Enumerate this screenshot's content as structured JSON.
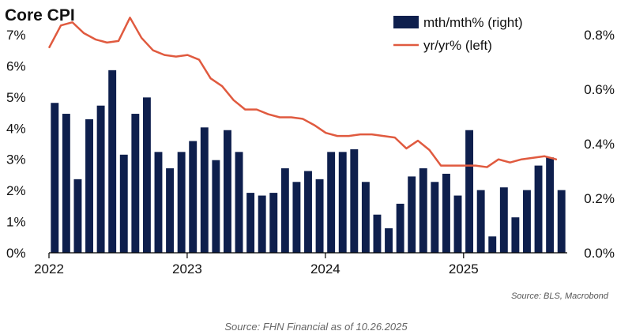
{
  "chart_data": {
    "type": "bar+line",
    "title": "Core CPI",
    "legend": [
      {
        "name": "mth/mth% (right)",
        "kind": "bar",
        "color": "#0e1f4d"
      },
      {
        "name": "yr/yr% (left)",
        "kind": "line",
        "color": "#e05a3f"
      }
    ],
    "x_ticks": [
      "2022",
      "2023",
      "2024",
      "2025"
    ],
    "x_tick_positions": [
      0,
      12,
      24,
      36
    ],
    "left_axis": {
      "range": [
        0,
        7
      ],
      "ticks": [
        "0%",
        "1%",
        "2%",
        "3%",
        "4%",
        "5%",
        "6%",
        "7%"
      ],
      "values": [
        0,
        1,
        2,
        3,
        4,
        5,
        6,
        7
      ]
    },
    "right_axis": {
      "range": [
        0,
        0.8
      ],
      "ticks": [
        "0.0%",
        "0.2%",
        "0.4%",
        "0.6%",
        "0.8%"
      ],
      "values": [
        0,
        0.2,
        0.4,
        0.6,
        0.8
      ]
    },
    "series": [
      {
        "name": "mth/mth% (right)",
        "type": "bar",
        "axis": "right",
        "values": [
          0.55,
          0.51,
          0.27,
          0.49,
          0.54,
          0.67,
          0.36,
          0.51,
          0.57,
          0.37,
          0.31,
          0.37,
          0.41,
          0.46,
          0.34,
          0.45,
          0.37,
          0.22,
          0.21,
          0.22,
          0.31,
          0.26,
          0.3,
          0.27,
          0.37,
          0.37,
          0.38,
          0.26,
          0.14,
          0.09,
          0.18,
          0.28,
          0.31,
          0.26,
          0.29,
          0.21,
          0.45,
          0.23,
          0.06,
          0.24,
          0.13,
          0.23,
          0.32,
          0.35,
          0.23
        ]
      },
      {
        "name": "yr/yr% (left)",
        "type": "line",
        "axis": "left",
        "values": [
          6.6,
          7.3,
          7.4,
          7.05,
          6.85,
          6.75,
          6.8,
          7.55,
          6.9,
          6.5,
          6.35,
          6.3,
          6.35,
          6.2,
          5.6,
          5.35,
          4.9,
          4.6,
          4.6,
          4.45,
          4.35,
          4.35,
          4.3,
          4.1,
          3.85,
          3.75,
          3.75,
          3.8,
          3.8,
          3.75,
          3.7,
          3.35,
          3.6,
          3.3,
          2.8,
          2.8,
          2.8,
          2.8,
          2.75,
          3.0,
          2.9,
          3.0,
          3.05,
          3.1,
          3.0
        ]
      }
    ],
    "source": "Source: BLS, Macrobond",
    "footer": "Source: FHN Financial as of 10.26.2025"
  }
}
